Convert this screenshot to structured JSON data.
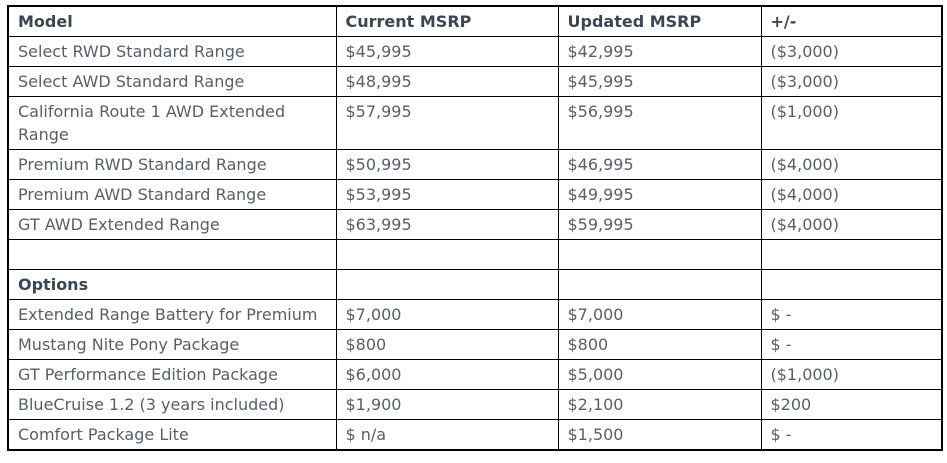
{
  "pricing_table": {
    "columns": [
      "Model",
      "Current MSRP",
      "Updated MSRP",
      "+/-"
    ],
    "rows": [
      {
        "style": "data",
        "cells": [
          "Select RWD Standard Range",
          "$45,995",
          "$42,995",
          "($3,000)"
        ]
      },
      {
        "style": "data",
        "cells": [
          "Select AWD Standard Range",
          "$48,995",
          "$45,995",
          "($3,000)"
        ]
      },
      {
        "style": "data",
        "cells": [
          "California Route 1 AWD Extended Range",
          "$57,995",
          "$56,995",
          "($1,000)"
        ]
      },
      {
        "style": "data",
        "cells": [
          "Premium RWD Standard Range",
          "$50,995",
          "$46,995",
          "($4,000)"
        ]
      },
      {
        "style": "data",
        "cells": [
          "Premium AWD Standard Range",
          "$53,995",
          "$49,995",
          "($4,000)"
        ]
      },
      {
        "style": "data",
        "cells": [
          "GT AWD Extended Range",
          "$63,995",
          "$59,995",
          "($4,000)"
        ]
      },
      {
        "style": "empty",
        "cells": [
          "",
          "",
          "",
          ""
        ]
      },
      {
        "style": "section",
        "cells": [
          "Options",
          "",
          "",
          ""
        ]
      },
      {
        "style": "data",
        "cells": [
          "Extended Range Battery for Premium",
          "$7,000",
          "$7,000",
          "$ -"
        ]
      },
      {
        "style": "data",
        "cells": [
          "Mustang Nite Pony Package",
          "$800",
          "$800",
          "$ -"
        ]
      },
      {
        "style": "data",
        "cells": [
          "GT Performance Edition Package",
          "$6,000",
          "$5,000",
          "($1,000)"
        ]
      },
      {
        "style": "data",
        "cells": [
          "BlueCruise 1.2 (3 years included)",
          "$1,900",
          "$2,100",
          "$200"
        ]
      },
      {
        "style": "data",
        "cells": [
          "Comfort Package Lite",
          "$ n/a",
          "$1,500",
          "$ -"
        ]
      }
    ]
  },
  "colors": {
    "header_text": "#3c4650",
    "body_text": "#575f69",
    "border": "#000000",
    "background": "#ffffff"
  }
}
